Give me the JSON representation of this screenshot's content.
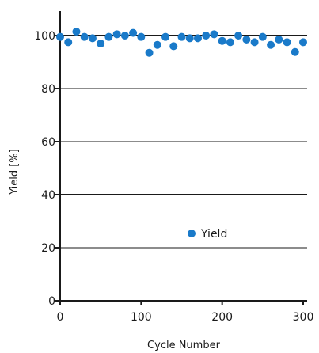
{
  "chart_data": {
    "type": "scatter",
    "title": "",
    "xlabel": "Cycle Number",
    "ylabel": "Yield [%]",
    "xlim": [
      0,
      300
    ],
    "ylim": [
      0,
      110
    ],
    "xticks": [
      0,
      100,
      200,
      300
    ],
    "yticks": [
      0,
      20,
      40,
      60,
      80,
      100
    ],
    "xtick_labels": [
      "0",
      "100",
      "200",
      "300"
    ],
    "ytick_labels": [
      "0",
      "20",
      "40",
      "60",
      "80",
      "100"
    ],
    "grid": "horizontal",
    "legend": {
      "position": "center",
      "entries": [
        "Yield"
      ]
    },
    "colors": {
      "marker": "#1a7ac9",
      "axis": "#1a1a1a",
      "grid": "#1a1a1a"
    },
    "series": [
      {
        "name": "Yield",
        "x": [
          0,
          10,
          20,
          30,
          40,
          50,
          60,
          70,
          80,
          90,
          100,
          110,
          120,
          130,
          140,
          150,
          160,
          170,
          180,
          190,
          200,
          210,
          220,
          230,
          240,
          250,
          260,
          270,
          280,
          290,
          300
        ],
        "y": [
          99.5,
          97.5,
          101.5,
          99.5,
          99.0,
          97.0,
          99.5,
          100.5,
          100.0,
          101.0,
          99.5,
          93.5,
          96.5,
          99.5,
          96.0,
          99.5,
          99.0,
          99.0,
          100.0,
          100.5,
          98.0,
          97.5,
          100.0,
          98.5,
          97.5,
          99.5,
          96.5,
          98.5,
          97.5,
          93.8,
          97.5
        ]
      }
    ]
  }
}
